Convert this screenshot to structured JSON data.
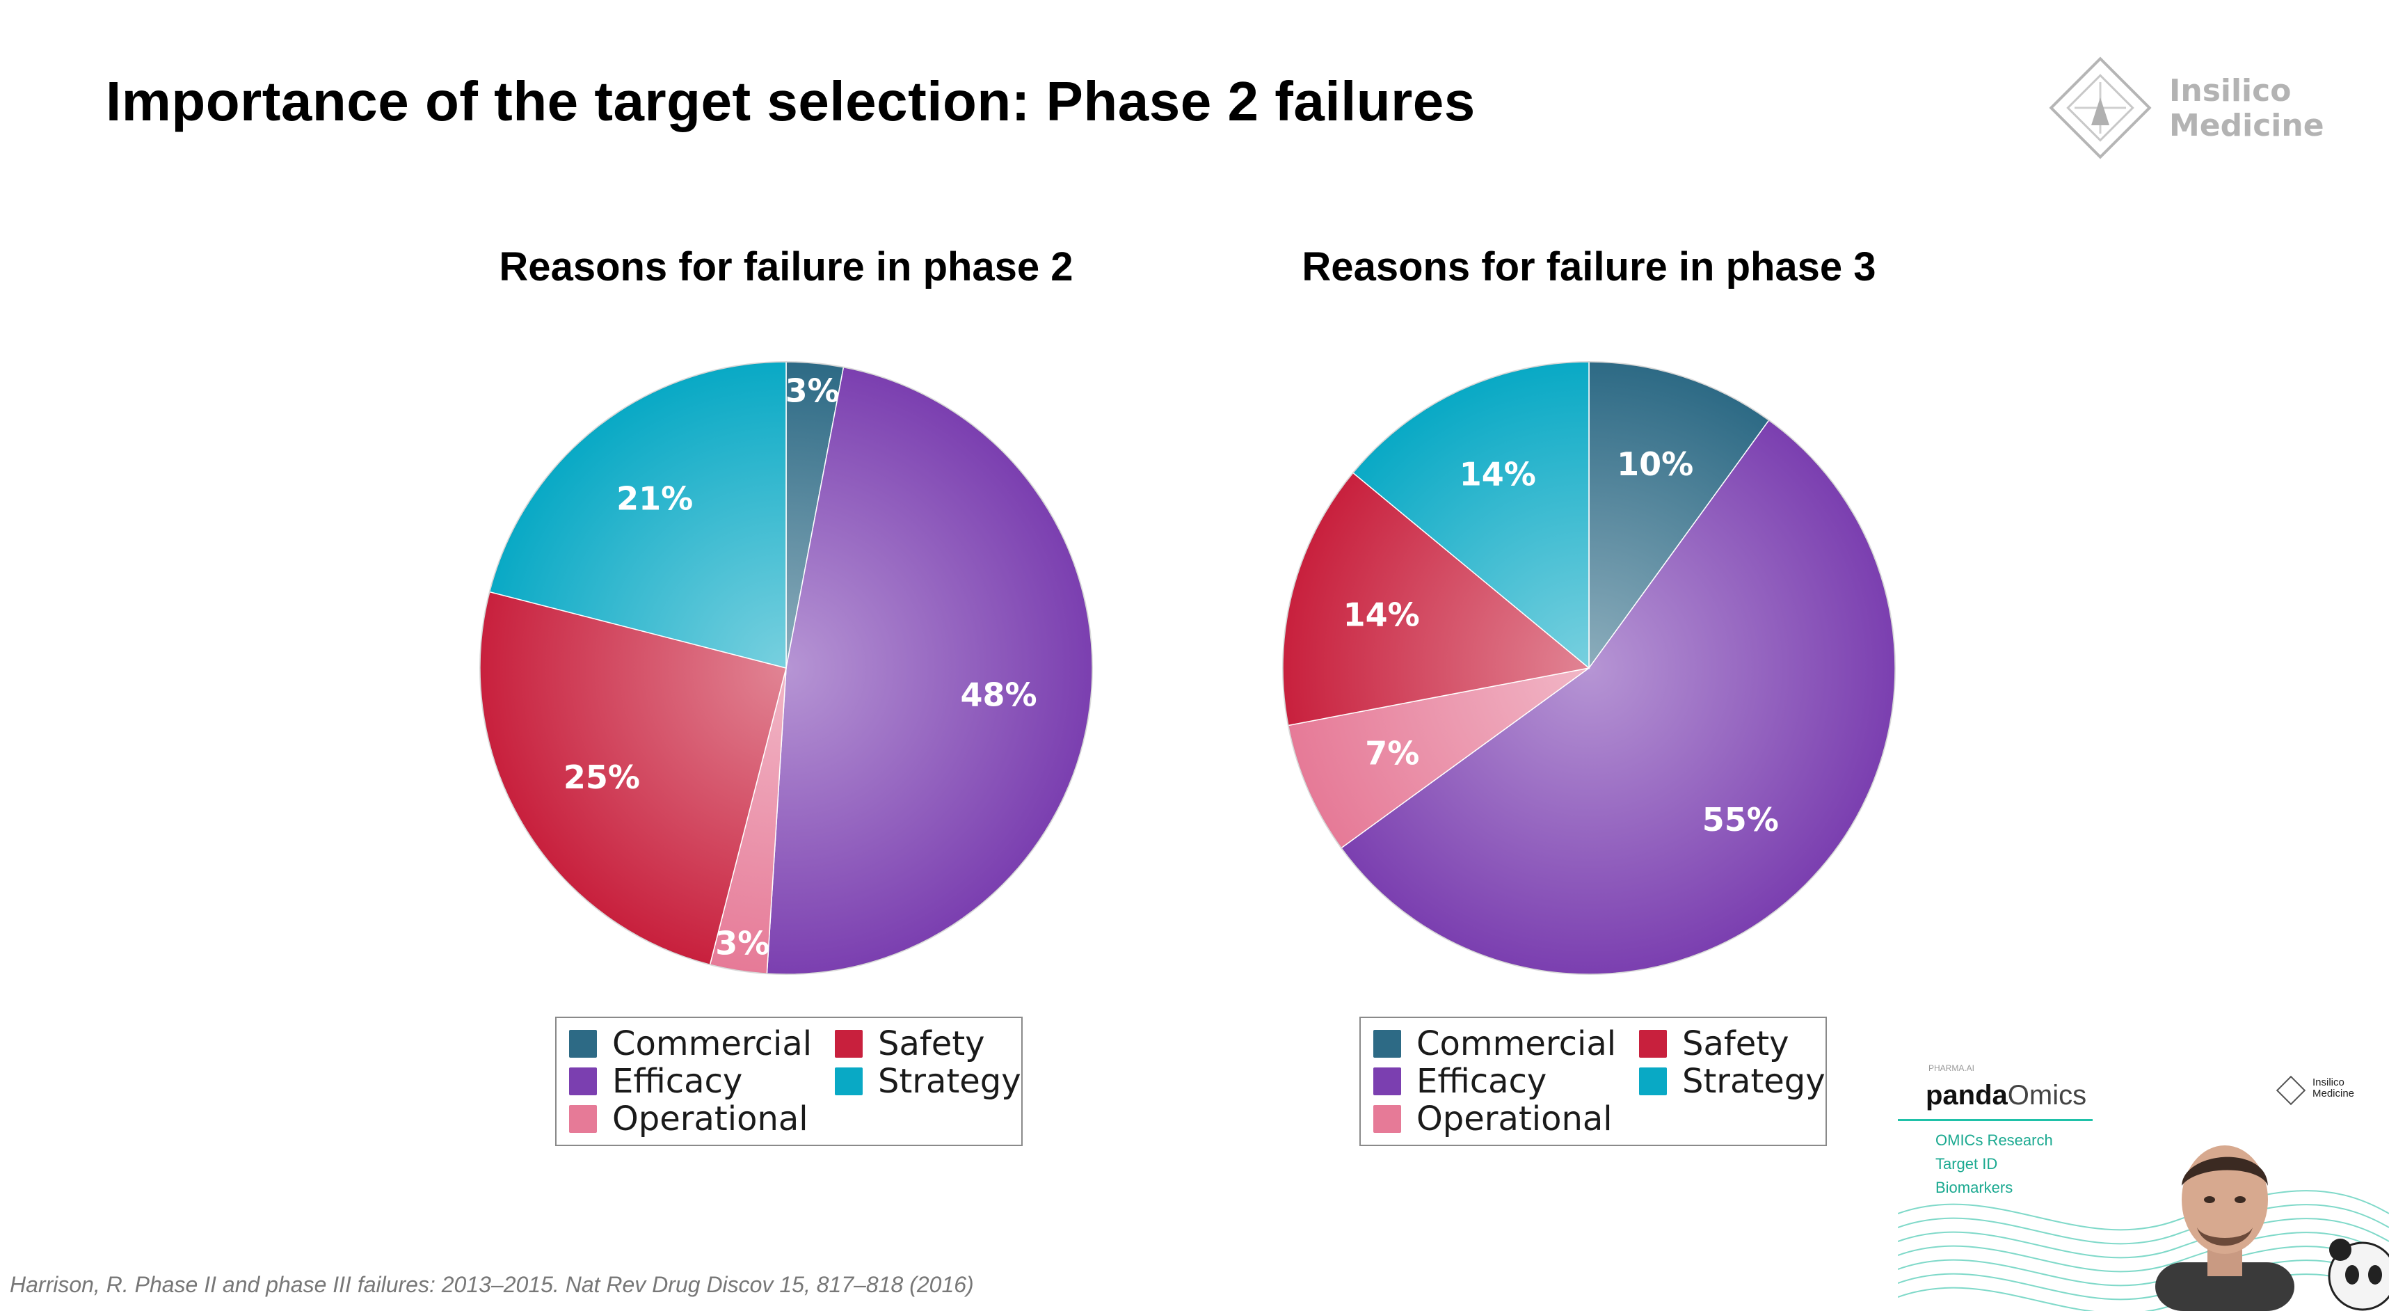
{
  "slide": {
    "title": "Importance of the target selection: Phase 2 failures",
    "logo_text": [
      "Insilico",
      "Medicine"
    ],
    "citation": "Harrison, R. Phase II and phase III failures: 2013–2015. Nat Rev Drug Discov 15, 817–818 (2016)"
  },
  "categories": {
    "Commercial": "#2d6a85",
    "Efficacy": "#7b3fb0",
    "Operational": "#e67a97",
    "Safety": "#c8203d",
    "Strategy": "#09a9c5"
  },
  "chart_data": [
    {
      "type": "pie",
      "title": "Reasons for failure in phase 2",
      "categories": [
        "Commercial",
        "Efficacy",
        "Operational",
        "Safety",
        "Strategy"
      ],
      "values": [
        3,
        48,
        3,
        25,
        21
      ],
      "labels": [
        "3%",
        "48%",
        "3%",
        "25%",
        "21%"
      ],
      "legend": [
        "Commercial",
        "Safety",
        "Efficacy",
        "Strategy",
        "Operational"
      ],
      "legend_placement": "bottom"
    },
    {
      "type": "pie",
      "title": "Reasons for failure in phase 3",
      "categories": [
        "Commercial",
        "Efficacy",
        "Operational",
        "Safety",
        "Strategy"
      ],
      "values": [
        10,
        55,
        7,
        14,
        14
      ],
      "labels": [
        "10%",
        "55%",
        "7%",
        "14%",
        "14%"
      ],
      "legend": [
        "Commercial",
        "Safety",
        "Efficacy",
        "Strategy",
        "Operational"
      ],
      "legend_placement": "bottom"
    }
  ],
  "video": {
    "header": "PHARMA.AI",
    "brand_bold": "panda",
    "brand_light": "Omics",
    "menu": [
      "OMICs Research",
      "Target ID",
      "Biomarkers"
    ],
    "logo_text": [
      "Insilico",
      "Medicine"
    ]
  }
}
